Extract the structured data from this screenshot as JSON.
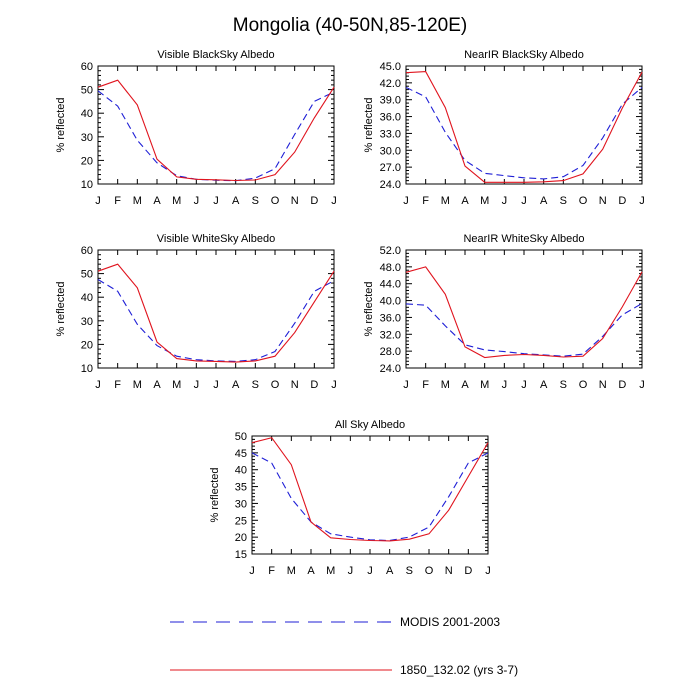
{
  "figure": {
    "title": "Mongolia (40-50N,85-120E)"
  },
  "colors": {
    "modis": "#1f1fd6",
    "model": "#e0141e",
    "axis": "#000000"
  },
  "legend": {
    "placement": "bottom-center",
    "items": [
      {
        "label": "MODIS 2001-2003",
        "style": "dashed",
        "color": "#1f1fd6"
      },
      {
        "label": "1850_132.02 (yrs 3-7)",
        "style": "solid",
        "color": "#e0141e"
      }
    ]
  },
  "chart_data": [
    {
      "type": "line",
      "title": "Visible BlackSky Albedo",
      "ylabel": "% reflected",
      "categories": [
        "J",
        "F",
        "M",
        "A",
        "M",
        "J",
        "J",
        "A",
        "S",
        "O",
        "N",
        "D",
        "J"
      ],
      "ylim": [
        10,
        60
      ],
      "yticks": [
        "10",
        "20",
        "30",
        "40",
        "50",
        "60"
      ],
      "series": [
        {
          "name": "MODIS 2001-2003",
          "values": [
            49.5,
            43,
            28.5,
            19,
            13.5,
            12,
            11.6,
            11.4,
            12.5,
            16.5,
            31,
            45,
            49
          ]
        },
        {
          "name": "1850_132.02 (yrs 3-7)",
          "values": [
            51,
            54,
            43.5,
            20.5,
            13,
            12,
            11.8,
            11.5,
            11.7,
            14,
            23.5,
            38,
            51
          ]
        }
      ]
    },
    {
      "type": "line",
      "title": "NearIR BlackSky Albedo",
      "ylabel": "% reflected",
      "categories": [
        "J",
        "F",
        "M",
        "A",
        "M",
        "J",
        "J",
        "A",
        "S",
        "O",
        "N",
        "D",
        "J"
      ],
      "ylim": [
        24,
        45
      ],
      "yticks": [
        "24.0",
        "27.0",
        "30.0",
        "33.0",
        "36.0",
        "39.0",
        "42.0",
        "45.0"
      ],
      "series": [
        {
          "name": "MODIS 2001-2003",
          "values": [
            41.2,
            39.5,
            33.2,
            28.2,
            25.9,
            25.5,
            25.1,
            24.9,
            25.3,
            27.3,
            32.2,
            38.2,
            41.2
          ]
        },
        {
          "name": "1850_132.02 (yrs 3-7)",
          "values": [
            43.8,
            44,
            37.6,
            27.2,
            24.3,
            24.3,
            24.3,
            24.4,
            24.6,
            25.8,
            30.2,
            37.5,
            43.9
          ]
        }
      ]
    },
    {
      "type": "line",
      "title": "Visible WhiteSky Albedo",
      "ylabel": "% reflected",
      "categories": [
        "J",
        "F",
        "M",
        "A",
        "M",
        "J",
        "J",
        "A",
        "S",
        "O",
        "N",
        "D",
        "J"
      ],
      "ylim": [
        10,
        60
      ],
      "yticks": [
        "10",
        "20",
        "30",
        "40",
        "50",
        "60"
      ],
      "series": [
        {
          "name": "MODIS 2001-2003",
          "values": [
            47.5,
            42.5,
            28.5,
            19.5,
            15,
            13.5,
            13,
            12.8,
            13.5,
            17,
            29,
            42.5,
            47
          ]
        },
        {
          "name": "1850_132.02 (yrs 3-7)",
          "values": [
            51,
            54,
            44,
            21,
            14,
            13,
            12.8,
            12.5,
            13,
            15,
            25,
            38,
            51
          ]
        }
      ]
    },
    {
      "type": "line",
      "title": "NearIR WhiteSky Albedo",
      "ylabel": "% reflected",
      "categories": [
        "J",
        "F",
        "M",
        "A",
        "M",
        "J",
        "J",
        "A",
        "S",
        "O",
        "N",
        "D",
        "J"
      ],
      "ylim": [
        24,
        52
      ],
      "yticks": [
        "24.0",
        "28.0",
        "32.0",
        "36.0",
        "40.0",
        "44.0",
        "48.0",
        "52.0"
      ],
      "series": [
        {
          "name": "MODIS 2001-2003",
          "values": [
            39.2,
            38.9,
            34,
            29.5,
            28.3,
            27.9,
            27.4,
            27.1,
            26.8,
            27.3,
            31.5,
            36.6,
            39.3
          ]
        },
        {
          "name": "1850_132.02 (yrs 3-7)",
          "values": [
            46.7,
            48,
            41.5,
            29,
            26.5,
            27,
            27.2,
            27,
            26.6,
            26.8,
            31,
            38.5,
            46.8
          ]
        }
      ]
    },
    {
      "type": "line",
      "title": "All Sky Albedo",
      "ylabel": "% reflected",
      "categories": [
        "J",
        "F",
        "M",
        "A",
        "M",
        "J",
        "J",
        "A",
        "S",
        "O",
        "N",
        "D",
        "J"
      ],
      "ylim": [
        15,
        50
      ],
      "yticks": [
        "15",
        "20",
        "25",
        "30",
        "35",
        "40",
        "45",
        "50"
      ],
      "series": [
        {
          "name": "MODIS 2001-2003",
          "values": [
            45,
            42,
            31.5,
            24.5,
            21,
            20,
            19.2,
            19,
            20,
            23,
            32,
            42,
            45
          ]
        },
        {
          "name": "1850_132.02 (yrs 3-7)",
          "values": [
            48,
            49.5,
            41.5,
            24.5,
            19.8,
            19.3,
            19,
            18.9,
            19.4,
            21,
            28,
            38,
            48
          ]
        }
      ]
    }
  ]
}
